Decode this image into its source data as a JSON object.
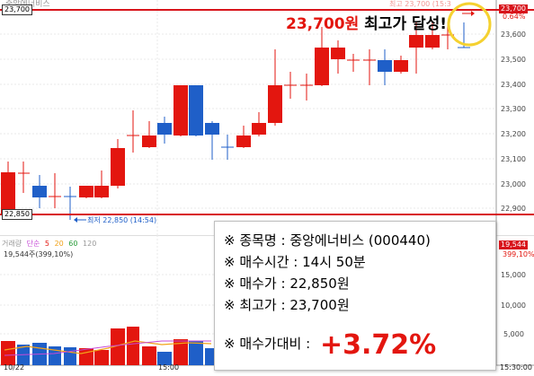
{
  "header": {
    "stock_name_partial": "중앙에너비스",
    "marker_text": "최고 23,700 (15:3"
  },
  "price_tags": {
    "high_left": "23,700",
    "low_left": "22,850",
    "right_high": "23,700",
    "right_pct": "0.64%",
    "low_marker": "최저 22,850 (14:54)"
  },
  "annotation": {
    "price": "23,700원",
    "text": " 최고가 달성!"
  },
  "price_axis": [
    "23,600",
    "23,500",
    "23,400",
    "23,300",
    "23,200",
    "23,100",
    "23,000",
    "22,900"
  ],
  "volume_axis": {
    "tag_value": "19,544",
    "tag_pct": "399,10%",
    "ticks": [
      "15,000",
      "10,000",
      "5,000"
    ]
  },
  "volume_legend": {
    "label": "거래량",
    "ma": [
      "단순",
      "5",
      "20",
      "60",
      "120"
    ],
    "sub": "19,544주(399,10%)"
  },
  "time_axis": [
    "10/22",
    "15:00",
    "15:30:00"
  ],
  "info": {
    "name_label": "※ 종목명 : ",
    "name_value": "중앙에너비스 (000440)",
    "time_label": "※ 매수시간 : ",
    "time_value": "14시 50분",
    "buy_label": "※ 매수가 : ",
    "buy_value": "22,850원",
    "high_label": "※ 최고가 : ",
    "high_value": "23,700원",
    "rate_label": "※ 매수가대비 : ",
    "rate_value": "+3.72%"
  },
  "colors": {
    "up": "#e3160f",
    "down": "#1f5fc8",
    "level_line": "#d8141b",
    "highlight_circle": "#f5d130"
  }
}
